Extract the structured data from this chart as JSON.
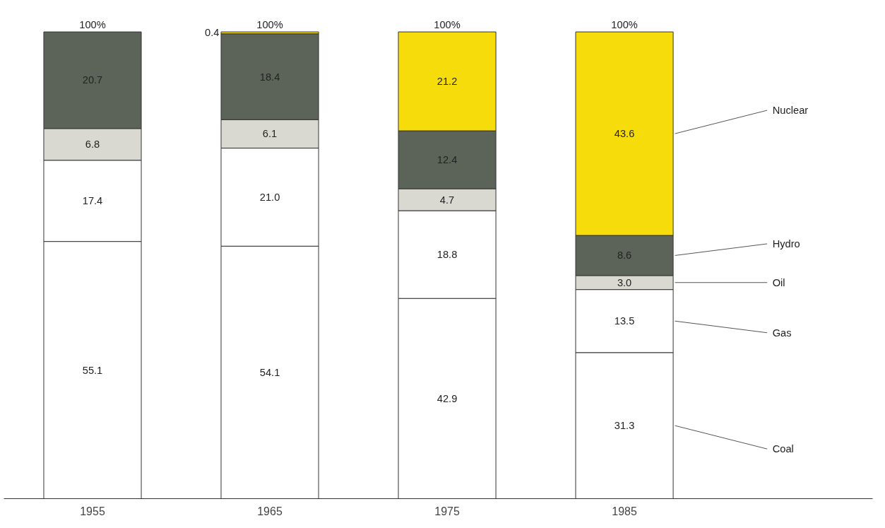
{
  "chart_data": {
    "type": "bar",
    "stacked": true,
    "categories": [
      "1955",
      "1965",
      "1975",
      "1985"
    ],
    "series": [
      {
        "name": "Coal",
        "color": "#ffffff",
        "values": [
          55.1,
          54.1,
          42.9,
          31.3
        ],
        "value_labels": [
          "55.1",
          "54.1",
          "42.9",
          "31.3"
        ]
      },
      {
        "name": "Gas",
        "color": "#ffffff",
        "values": [
          17.4,
          21.0,
          18.8,
          13.5
        ],
        "value_labels": [
          "17.4",
          "21.0",
          "18.8",
          "13.5"
        ]
      },
      {
        "name": "Oil",
        "color": "#d9d9d2",
        "values": [
          6.8,
          6.1,
          4.7,
          3.0
        ],
        "value_labels": [
          "6.8",
          "6.1",
          "4.7",
          "3.0"
        ]
      },
      {
        "name": "Hydro",
        "color": "#5c645a",
        "values": [
          20.7,
          18.4,
          12.4,
          8.6
        ],
        "value_labels": [
          "20.7",
          "18.4",
          "12.4",
          "8.6"
        ]
      },
      {
        "name": "Nuclear",
        "color": "#f7dc0c",
        "values": [
          null,
          0.4,
          21.2,
          43.6
        ],
        "value_labels": [
          null,
          "0.4",
          "21.2",
          "43.6"
        ]
      }
    ],
    "annotations": [
      {
        "text": "100%",
        "x": "1955",
        "y": 100
      },
      {
        "text": "100%",
        "x": "1965",
        "y": 100
      },
      {
        "text": "100%",
        "x": "1975",
        "y": 100
      },
      {
        "text": "100%",
        "x": "1985",
        "y": 100
      }
    ],
    "legend": "right",
    "grid": false
  }
}
